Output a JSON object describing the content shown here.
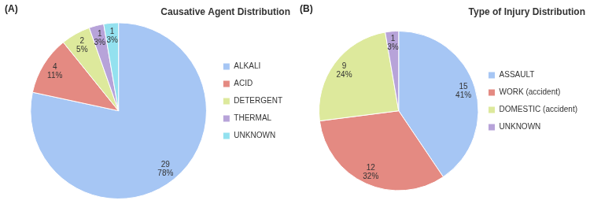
{
  "chart_data": [
    {
      "type": "pie",
      "panel": "(A)",
      "title": "Causative Agent Distribution",
      "categories": [
        "ALKALI",
        "ACID",
        "DETERGENT",
        "THERMAL",
        "UNKNOWN"
      ],
      "values": [
        29,
        4,
        2,
        1,
        1
      ],
      "value_labels": [
        [
          "29",
          "78%"
        ],
        [
          "4",
          "11%"
        ],
        [
          "2",
          "5%"
        ],
        [
          "1",
          "3%"
        ],
        [
          "1",
          "3%"
        ]
      ],
      "colors": [
        "#a6c6f4",
        "#e48a82",
        "#dde99c",
        "#b7a3d9",
        "#93e1ef"
      ],
      "legend": "right",
      "data_labels": true
    },
    {
      "type": "pie",
      "panel": "(B)",
      "title": "Type of Injury Distribution",
      "categories": [
        "ASSAULT",
        "WORK (accident)",
        "DOMESTIC (accident)",
        "UNKNOWN"
      ],
      "values": [
        15,
        12,
        9,
        1
      ],
      "value_labels": [
        [
          "15",
          "41%"
        ],
        [
          "12",
          "32%"
        ],
        [
          "9",
          "24%"
        ],
        [
          "1",
          "3%"
        ]
      ],
      "colors": [
        "#a6c6f4",
        "#e48a82",
        "#dde99c",
        "#b7a3d9"
      ],
      "legend": "right",
      "data_labels": true
    }
  ]
}
